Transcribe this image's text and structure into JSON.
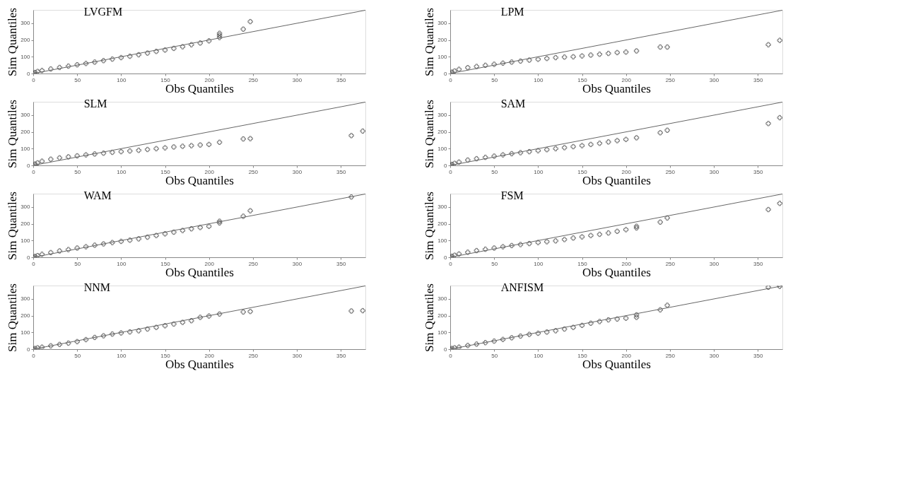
{
  "chart_data": [
    {
      "type": "scatter",
      "title": "LVGFM",
      "xlabel": "Obs Quantiles",
      "ylabel": "Sim Quantiles",
      "xlim": [
        0,
        378
      ],
      "ylim": [
        0,
        380
      ],
      "xticks": [
        0,
        50,
        100,
        150,
        200,
        250,
        300,
        350
      ],
      "yticks": [
        0,
        100,
        200,
        300
      ],
      "grid": false,
      "series": [
        {
          "color": "#333333",
          "marker": "cross",
          "x": [
            0,
            2,
            5,
            10,
            20,
            30,
            40,
            50,
            60,
            70,
            80,
            90,
            100,
            110,
            120,
            130,
            140,
            150,
            160,
            170,
            180,
            190,
            200,
            212,
            212,
            212,
            239,
            247
          ],
          "values": [
            0,
            6,
            12,
            18,
            27,
            36,
            44,
            52,
            60,
            68,
            77,
            86,
            95,
            103,
            112,
            122,
            132,
            140,
            150,
            160,
            172,
            182,
            195,
            215,
            228,
            240,
            265,
            310
          ]
        },
        {
          "type": "line",
          "color": "#666666",
          "x": [
            0,
            378
          ],
          "values": [
            0,
            378
          ]
        }
      ]
    },
    {
      "type": "scatter",
      "title": "LPM",
      "xlabel": "Obs Quantiles",
      "ylabel": "Sim Quantiles",
      "xlim": [
        0,
        378
      ],
      "ylim": [
        0,
        380
      ],
      "xticks": [
        0,
        50,
        100,
        150,
        200,
        250,
        300,
        350
      ],
      "yticks": [
        0,
        100,
        200,
        300
      ],
      "grid": false,
      "series": [
        {
          "color": "#333333",
          "marker": "cross",
          "x": [
            0,
            2,
            5,
            10,
            20,
            30,
            40,
            50,
            60,
            70,
            80,
            90,
            100,
            110,
            120,
            130,
            140,
            150,
            160,
            170,
            180,
            190,
            200,
            212,
            239,
            247,
            362,
            375
          ],
          "values": [
            0,
            8,
            15,
            25,
            35,
            42,
            49,
            55,
            62,
            68,
            74,
            80,
            85,
            90,
            95,
            98,
            100,
            105,
            110,
            115,
            120,
            125,
            128,
            135,
            158,
            158,
            172,
            198
          ]
        },
        {
          "type": "line",
          "color": "#666666",
          "x": [
            0,
            378
          ],
          "values": [
            0,
            378
          ]
        }
      ]
    },
    {
      "type": "scatter",
      "title": "SLM",
      "xlabel": "Obs Quantiles",
      "ylabel": "Sim Quantiles",
      "xlim": [
        0,
        378
      ],
      "ylim": [
        0,
        380
      ],
      "xticks": [
        0,
        50,
        100,
        150,
        200,
        250,
        300,
        350
      ],
      "yticks": [
        0,
        100,
        200,
        300
      ],
      "grid": false,
      "series": [
        {
          "color": "#333333",
          "marker": "cross",
          "x": [
            0,
            2,
            5,
            10,
            20,
            30,
            40,
            50,
            60,
            70,
            80,
            90,
            100,
            110,
            120,
            130,
            140,
            150,
            160,
            170,
            180,
            190,
            200,
            212,
            239,
            247,
            362,
            375
          ],
          "values": [
            0,
            8,
            15,
            25,
            37,
            45,
            51,
            57,
            63,
            68,
            73,
            78,
            82,
            86,
            90,
            95,
            100,
            105,
            110,
            114,
            118,
            122,
            125,
            138,
            158,
            160,
            178,
            205
          ]
        },
        {
          "type": "line",
          "color": "#666666",
          "x": [
            0,
            378
          ],
          "values": [
            0,
            378
          ]
        }
      ]
    },
    {
      "type": "scatter",
      "title": "SAM",
      "xlabel": "Obs Quantiles",
      "ylabel": "Sim Quantiles",
      "xlim": [
        0,
        378
      ],
      "ylim": [
        0,
        380
      ],
      "xticks": [
        0,
        50,
        100,
        150,
        200,
        250,
        300,
        350
      ],
      "yticks": [
        0,
        100,
        200,
        300
      ],
      "grid": false,
      "series": [
        {
          "color": "#333333",
          "marker": "cross",
          "x": [
            0,
            2,
            5,
            10,
            20,
            30,
            40,
            50,
            60,
            70,
            80,
            90,
            100,
            110,
            120,
            130,
            140,
            150,
            160,
            170,
            180,
            190,
            200,
            212,
            239,
            247,
            362,
            375
          ],
          "values": [
            0,
            6,
            12,
            20,
            32,
            40,
            48,
            55,
            63,
            70,
            76,
            82,
            88,
            94,
            100,
            106,
            112,
            118,
            125,
            132,
            140,
            148,
            155,
            165,
            195,
            210,
            250,
            285
          ]
        },
        {
          "type": "line",
          "color": "#666666",
          "x": [
            0,
            378
          ],
          "values": [
            0,
            378
          ]
        }
      ]
    },
    {
      "type": "scatter",
      "title": "WAM",
      "xlabel": "Obs Quantiles",
      "ylabel": "Sim Quantiles",
      "xlim": [
        0,
        378
      ],
      "ylim": [
        0,
        380
      ],
      "xticks": [
        0,
        50,
        100,
        150,
        200,
        250,
        300,
        350
      ],
      "yticks": [
        0,
        100,
        200,
        300
      ],
      "grid": false,
      "series": [
        {
          "color": "#333333",
          "marker": "cross",
          "x": [
            0,
            2,
            5,
            10,
            20,
            30,
            40,
            50,
            60,
            70,
            80,
            90,
            100,
            110,
            120,
            130,
            140,
            150,
            160,
            170,
            180,
            190,
            200,
            212,
            212,
            239,
            247,
            362
          ],
          "values": [
            0,
            5,
            10,
            18,
            28,
            38,
            46,
            55,
            63,
            72,
            80,
            88,
            95,
            102,
            110,
            120,
            130,
            140,
            150,
            160,
            170,
            178,
            185,
            205,
            215,
            245,
            278,
            360
          ]
        },
        {
          "type": "line",
          "color": "#666666",
          "x": [
            0,
            378
          ],
          "values": [
            0,
            378
          ]
        }
      ]
    },
    {
      "type": "scatter",
      "title": "FSM",
      "xlabel": "Obs Quantiles",
      "ylabel": "Sim Quantiles",
      "xlim": [
        0,
        378
      ],
      "ylim": [
        0,
        380
      ],
      "xticks": [
        0,
        50,
        100,
        150,
        200,
        250,
        300,
        350
      ],
      "yticks": [
        0,
        100,
        200,
        300
      ],
      "grid": false,
      "series": [
        {
          "color": "#333333",
          "marker": "cross",
          "x": [
            0,
            2,
            5,
            10,
            20,
            30,
            40,
            50,
            60,
            70,
            80,
            90,
            100,
            110,
            120,
            130,
            140,
            150,
            160,
            170,
            180,
            190,
            200,
            212,
            212,
            239,
            247,
            362,
            375
          ],
          "values": [
            0,
            6,
            12,
            20,
            30,
            40,
            48,
            55,
            63,
            70,
            76,
            82,
            88,
            93,
            98,
            106,
            115,
            122,
            130,
            137,
            145,
            155,
            165,
            175,
            185,
            210,
            235,
            285,
            322
          ]
        },
        {
          "type": "line",
          "color": "#666666",
          "x": [
            0,
            378
          ],
          "values": [
            0,
            378
          ]
        }
      ]
    },
    {
      "type": "scatter",
      "title": "NNM",
      "xlabel": "Obs Quantiles",
      "ylabel": "Sim Quantiles",
      "xlim": [
        0,
        378
      ],
      "ylim": [
        0,
        380
      ],
      "xticks": [
        0,
        50,
        100,
        150,
        200,
        250,
        300,
        350
      ],
      "yticks": [
        0,
        100,
        200,
        300
      ],
      "grid": false,
      "series": [
        {
          "color": "#333333",
          "marker": "cross",
          "x": [
            0,
            2,
            5,
            10,
            20,
            30,
            40,
            50,
            60,
            70,
            80,
            90,
            100,
            110,
            120,
            130,
            140,
            150,
            160,
            170,
            180,
            190,
            200,
            212,
            239,
            247,
            362,
            375
          ],
          "values": [
            0,
            4,
            8,
            12,
            20,
            28,
            36,
            45,
            57,
            70,
            80,
            90,
            97,
            103,
            110,
            120,
            130,
            140,
            150,
            160,
            170,
            190,
            198,
            210,
            222,
            225,
            228,
            230
          ]
        },
        {
          "type": "line",
          "color": "#666666",
          "x": [
            0,
            378
          ],
          "values": [
            0,
            378
          ]
        }
      ]
    },
    {
      "type": "scatter",
      "title": "ANFISM",
      "xlabel": "Obs Quantiles",
      "ylabel": "Sim Quantiles",
      "xlim": [
        0,
        378
      ],
      "ylim": [
        0,
        380
      ],
      "xticks": [
        0,
        50,
        100,
        150,
        200,
        250,
        300,
        350
      ],
      "yticks": [
        0,
        100,
        200,
        300
      ],
      "grid": false,
      "series": [
        {
          "color": "#333333",
          "marker": "cross",
          "x": [
            0,
            2,
            5,
            10,
            20,
            30,
            40,
            50,
            60,
            70,
            80,
            90,
            100,
            110,
            120,
            130,
            140,
            150,
            160,
            170,
            180,
            190,
            200,
            212,
            212,
            239,
            247,
            362,
            375
          ],
          "values": [
            0,
            4,
            8,
            12,
            22,
            30,
            39,
            48,
            58,
            68,
            78,
            88,
            95,
            102,
            110,
            120,
            130,
            142,
            155,
            165,
            175,
            180,
            185,
            190,
            205,
            235,
            262,
            370,
            375
          ]
        },
        {
          "type": "line",
          "color": "#666666",
          "x": [
            0,
            378
          ],
          "values": [
            0,
            378
          ]
        }
      ]
    }
  ]
}
